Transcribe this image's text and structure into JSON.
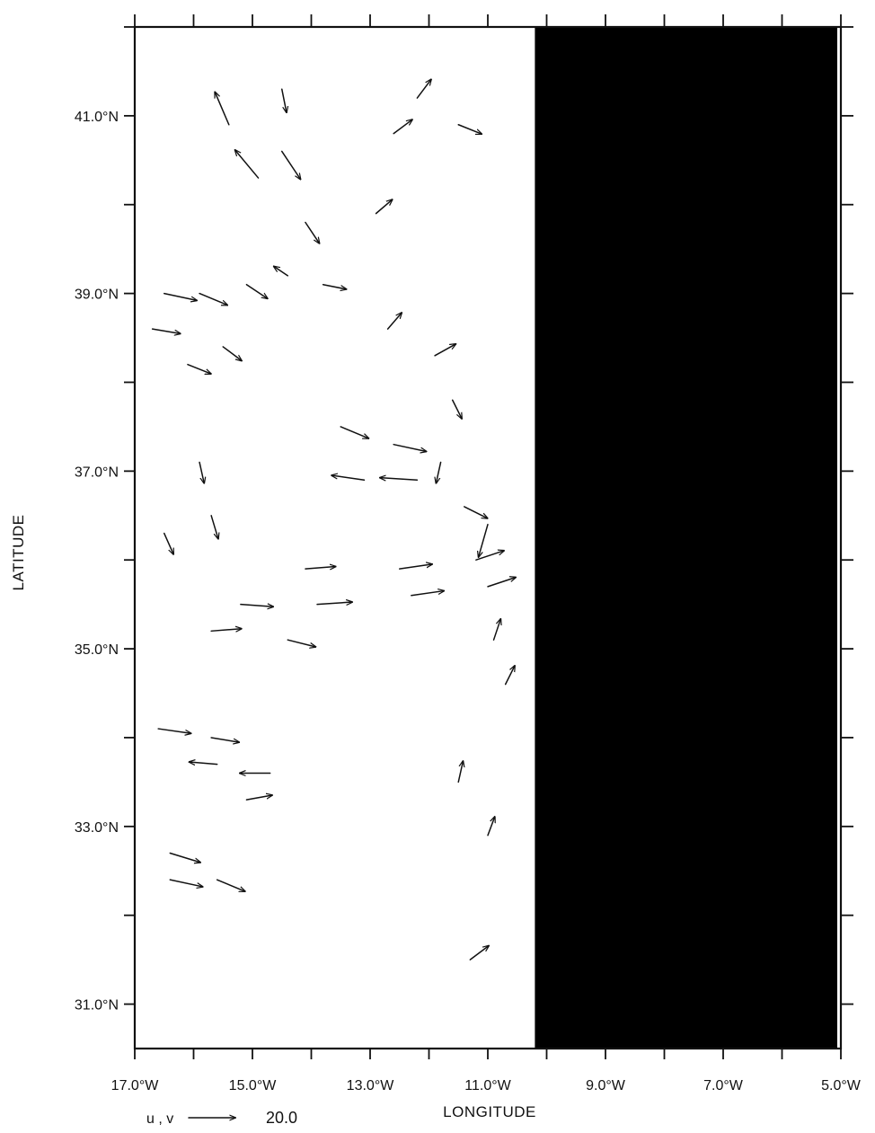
{
  "chart_data": {
    "type": "vector-field",
    "xlabel": "LONGITUDE",
    "ylabel": "LATITUDE",
    "xlim": [
      -17.0,
      -5.0
    ],
    "ylim": [
      30.5,
      42.0
    ],
    "x_ticks": [
      {
        "value": -17.0,
        "label": "17.0°W"
      },
      {
        "value": -15.0,
        "label": "15.0°W"
      },
      {
        "value": -13.0,
        "label": "13.0°W"
      },
      {
        "value": -11.0,
        "label": "11.0°W"
      },
      {
        "value": -9.0,
        "label": "9.0°W"
      },
      {
        "value": -7.0,
        "label": "7.0°W"
      },
      {
        "value": -5.0,
        "label": "5.0°W"
      }
    ],
    "y_ticks": [
      {
        "value": 31.0,
        "label": "31.0°N"
      },
      {
        "value": 33.0,
        "label": "33.0°N"
      },
      {
        "value": 35.0,
        "label": "35.0°N"
      },
      {
        "value": 37.0,
        "label": "37.0°N"
      },
      {
        "value": 39.0,
        "label": "39.0°N"
      },
      {
        "value": 41.0,
        "label": "41.0°N"
      }
    ],
    "minor_tick_step": 1.0,
    "reference_vector": {
      "label": "u , v",
      "magnitude": 20.0,
      "magnitude_label": "20.0"
    },
    "land_mask": {
      "east_of_lon": -10.2,
      "color": "#000000"
    },
    "grid": false,
    "vectors": [
      {
        "lon": -16.7,
        "lat": 38.6,
        "u": 12,
        "v": -2
      },
      {
        "lon": -16.1,
        "lat": 38.2,
        "u": 10,
        "v": -4
      },
      {
        "lon": -15.5,
        "lat": 38.4,
        "u": 8,
        "v": -6
      },
      {
        "lon": -16.5,
        "lat": 39.0,
        "u": 14,
        "v": -3
      },
      {
        "lon": -15.9,
        "lat": 39.0,
        "u": 12,
        "v": -5
      },
      {
        "lon": -15.1,
        "lat": 39.1,
        "u": 9,
        "v": -6
      },
      {
        "lon": -14.4,
        "lat": 39.2,
        "u": -6,
        "v": 4
      },
      {
        "lon": -13.8,
        "lat": 39.1,
        "u": 10,
        "v": -2
      },
      {
        "lon": -14.9,
        "lat": 40.3,
        "u": -10,
        "v": 12
      },
      {
        "lon": -15.4,
        "lat": 40.9,
        "u": -6,
        "v": 14
      },
      {
        "lon": -14.5,
        "lat": 40.6,
        "u": 8,
        "v": -12
      },
      {
        "lon": -14.1,
        "lat": 39.8,
        "u": 6,
        "v": -9
      },
      {
        "lon": -13.5,
        "lat": 37.5,
        "u": 12,
        "v": -5
      },
      {
        "lon": -12.6,
        "lat": 37.3,
        "u": 14,
        "v": -3
      },
      {
        "lon": -12.7,
        "lat": 38.6,
        "u": 6,
        "v": 7
      },
      {
        "lon": -11.9,
        "lat": 38.3,
        "u": 9,
        "v": 5
      },
      {
        "lon": -11.6,
        "lat": 37.8,
        "u": 4,
        "v": -8
      },
      {
        "lon": -11.8,
        "lat": 37.1,
        "u": -2,
        "v": -9
      },
      {
        "lon": -12.2,
        "lat": 36.9,
        "u": -16,
        "v": 1
      },
      {
        "lon": -13.1,
        "lat": 36.9,
        "u": -14,
        "v": 2
      },
      {
        "lon": -11.4,
        "lat": 36.6,
        "u": 10,
        "v": -5
      },
      {
        "lon": -11.0,
        "lat": 36.4,
        "u": -4,
        "v": -14
      },
      {
        "lon": -11.2,
        "lat": 36.0,
        "u": 12,
        "v": 4
      },
      {
        "lon": -12.5,
        "lat": 35.9,
        "u": 14,
        "v": 2
      },
      {
        "lon": -14.1,
        "lat": 35.9,
        "u": 13,
        "v": 1
      },
      {
        "lon": -15.2,
        "lat": 35.5,
        "u": 14,
        "v": -1
      },
      {
        "lon": -13.9,
        "lat": 35.5,
        "u": 15,
        "v": 1
      },
      {
        "lon": -12.3,
        "lat": 35.6,
        "u": 14,
        "v": 2
      },
      {
        "lon": -11.0,
        "lat": 35.7,
        "u": 12,
        "v": 4
      },
      {
        "lon": -15.7,
        "lat": 35.2,
        "u": 13,
        "v": 1
      },
      {
        "lon": -14.4,
        "lat": 35.1,
        "u": 12,
        "v": -3
      },
      {
        "lon": -16.5,
        "lat": 36.3,
        "u": 4,
        "v": -9
      },
      {
        "lon": -15.7,
        "lat": 36.5,
        "u": 3,
        "v": -10
      },
      {
        "lon": -15.9,
        "lat": 37.1,
        "u": 2,
        "v": -9
      },
      {
        "lon": -16.6,
        "lat": 34.1,
        "u": 14,
        "v": -2
      },
      {
        "lon": -15.7,
        "lat": 34.0,
        "u": 12,
        "v": -2
      },
      {
        "lon": -15.6,
        "lat": 33.7,
        "u": -12,
        "v": 1
      },
      {
        "lon": -14.7,
        "lat": 33.6,
        "u": -13,
        "v": 0
      },
      {
        "lon": -15.1,
        "lat": 33.3,
        "u": 11,
        "v": 2
      },
      {
        "lon": -16.4,
        "lat": 32.7,
        "u": 13,
        "v": -4
      },
      {
        "lon": -15.6,
        "lat": 32.4,
        "u": 12,
        "v": -5
      },
      {
        "lon": -16.4,
        "lat": 32.4,
        "u": 14,
        "v": -3
      },
      {
        "lon": -11.5,
        "lat": 33.5,
        "u": 2,
        "v": 9
      },
      {
        "lon": -11.0,
        "lat": 32.9,
        "u": 3,
        "v": 8
      },
      {
        "lon": -11.3,
        "lat": 31.5,
        "u": 8,
        "v": 6
      },
      {
        "lon": -10.7,
        "lat": 34.6,
        "u": 4,
        "v": 8
      },
      {
        "lon": -10.9,
        "lat": 35.1,
        "u": 3,
        "v": 9
      },
      {
        "lon": -12.6,
        "lat": 40.8,
        "u": 8,
        "v": 6
      },
      {
        "lon": -12.2,
        "lat": 41.2,
        "u": 6,
        "v": 8
      },
      {
        "lon": -11.5,
        "lat": 40.9,
        "u": 10,
        "v": -4
      },
      {
        "lon": -14.5,
        "lat": 41.3,
        "u": 2,
        "v": -10
      },
      {
        "lon": -12.9,
        "lat": 39.9,
        "u": 7,
        "v": 6
      }
    ]
  }
}
